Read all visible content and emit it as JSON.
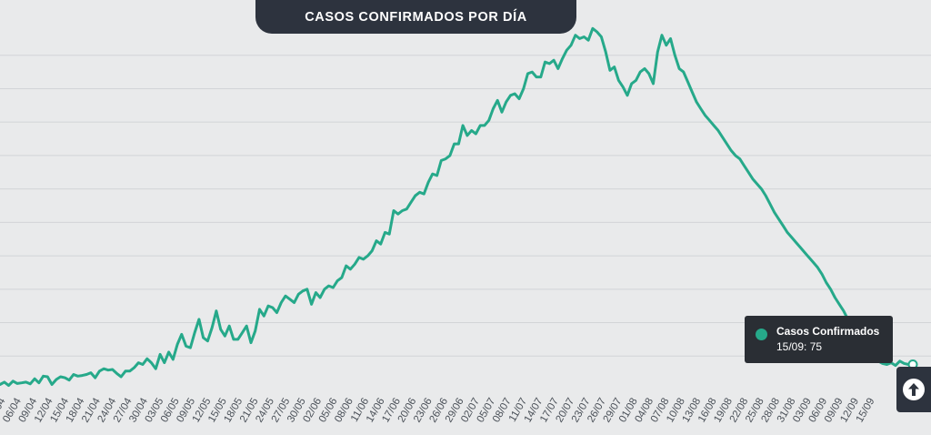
{
  "header": {
    "title": "CASOS CONFIRMADOS POR DÍA"
  },
  "tooltip": {
    "series": "Casos Confirmados",
    "value_text": "15/09: 75"
  },
  "scroll_top": {
    "icon": "arrow-up-icon"
  },
  "colors": {
    "background": "#e9eaeb",
    "line": "#26a98a",
    "grid": "#d2d4d7",
    "title_bg": "#2d333e",
    "tooltip_bg": "#2a2e34",
    "tick_text": "#4a5058"
  },
  "chart_data": {
    "type": "line",
    "title": "CASOS CONFIRMADOS POR DÍA",
    "xlabel": "",
    "ylabel": "",
    "grid": true,
    "legend": "none",
    "y_axis_labels_visible": false,
    "ylim": [
      0,
      1100
    ],
    "x_tick_labels": [
      "03/04",
      "06/04",
      "09/04",
      "12/04",
      "15/04",
      "18/04",
      "21/04",
      "24/04",
      "27/04",
      "30/04",
      "03/05",
      "06/05",
      "09/05",
      "12/05",
      "15/05",
      "18/05",
      "21/05",
      "24/05",
      "27/05",
      "30/05",
      "02/06",
      "05/06",
      "08/06",
      "11/06",
      "14/06",
      "17/06",
      "20/06",
      "23/06",
      "26/06",
      "29/06",
      "02/07",
      "05/07",
      "08/07",
      "11/07",
      "14/07",
      "17/07",
      "20/07",
      "23/07",
      "26/07",
      "29/07",
      "01/08",
      "04/08",
      "07/08",
      "10/08",
      "13/08",
      "16/08",
      "19/08",
      "22/08",
      "25/08",
      "28/08",
      "31/08",
      "03/09",
      "06/09",
      "09/09",
      "12/09",
      "15/09"
    ],
    "x_start": "01/04",
    "series": [
      {
        "name": "Casos Confirmados",
        "values": [
          15,
          22,
          12,
          25,
          18,
          20,
          22,
          17,
          32,
          20,
          40,
          38,
          15,
          30,
          38,
          35,
          28,
          45,
          40,
          42,
          45,
          50,
          35,
          55,
          62,
          58,
          60,
          48,
          38,
          55,
          55,
          65,
          80,
          75,
          92,
          80,
          62,
          105,
          80,
          112,
          90,
          135,
          165,
          130,
          125,
          170,
          210,
          155,
          145,
          185,
          235,
          180,
          160,
          190,
          150,
          150,
          170,
          190,
          140,
          175,
          240,
          220,
          250,
          245,
          230,
          260,
          280,
          270,
          260,
          285,
          295,
          300,
          255,
          290,
          275,
          300,
          310,
          305,
          325,
          335,
          370,
          360,
          375,
          395,
          390,
          400,
          415,
          445,
          435,
          470,
          465,
          535,
          525,
          535,
          540,
          560,
          580,
          590,
          585,
          620,
          645,
          640,
          685,
          690,
          700,
          735,
          735,
          790,
          760,
          775,
          765,
          790,
          790,
          805,
          840,
          865,
          830,
          860,
          880,
          885,
          870,
          900,
          945,
          950,
          935,
          935,
          980,
          975,
          985,
          960,
          990,
          1015,
          1030,
          1060,
          1050,
          1055,
          1045,
          1080,
          1070,
          1055,
          1010,
          955,
          965,
          925,
          905,
          880,
          915,
          925,
          950,
          960,
          945,
          915,
          1010,
          1060,
          1030,
          1050,
          1000,
          960,
          950,
          920,
          890,
          860,
          840,
          820,
          805,
          790,
          775,
          755,
          735,
          715,
          700,
          690,
          670,
          650,
          630,
          615,
          600,
          580,
          555,
          530,
          510,
          490,
          470,
          455,
          440,
          425,
          410,
          395,
          380,
          365,
          345,
          320,
          300,
          275,
          255,
          235,
          210,
          185,
          165,
          140,
          120,
          100,
          95,
          85,
          78,
          75,
          80,
          72,
          85,
          78,
          75,
          75
        ]
      }
    ]
  }
}
